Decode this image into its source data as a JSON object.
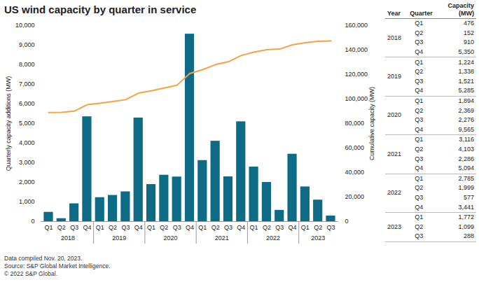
{
  "chart_data": {
    "type": "bar",
    "title": "US wind capacity by quarter in service",
    "categories": [
      "Q1",
      "Q2",
      "Q3",
      "Q4",
      "Q1",
      "Q2",
      "Q3",
      "Q4",
      "Q1",
      "Q2",
      "Q3",
      "Q4",
      "Q1",
      "Q2",
      "Q3",
      "Q4",
      "Q1",
      "Q2",
      "Q3",
      "Q4",
      "Q1",
      "Q2",
      "Q3"
    ],
    "years": [
      "2018",
      "2018",
      "2018",
      "2018",
      "2019",
      "2019",
      "2019",
      "2019",
      "2020",
      "2020",
      "2020",
      "2020",
      "2021",
      "2021",
      "2021",
      "2021",
      "2022",
      "2022",
      "2022",
      "2022",
      "2023",
      "2023",
      "2023"
    ],
    "series": [
      {
        "type": "bar",
        "color": "#0d6b86",
        "values": [
          476,
          152,
          910,
          5350,
          1224,
          1338,
          1521,
          5285,
          1894,
          2369,
          2276,
          9565,
          3116,
          4103,
          2286,
          5094,
          2785,
          1999,
          577,
          3441,
          1772,
          1099,
          288
        ]
      },
      {
        "type": "line",
        "axis": "y2",
        "color": "#f4a340",
        "values": [
          89000,
          89200,
          90100,
          95400,
          96600,
          98000,
          99500,
          104800,
          106700,
          109000,
          111300,
          120900,
          124000,
          128100,
          130400,
          135500,
          138300,
          140300,
          140800,
          144300,
          146000,
          147200,
          147400
        ]
      }
    ],
    "ylabel": "Quarterly capacity additions (MW)",
    "y2label": "Cumulative capacity (MW)",
    "ylim": [
      0,
      10000
    ],
    "yticks": [
      0,
      {
        "value": 1000,
        "label": "1,000"
      },
      {
        "value": 2000,
        "label": "2,000"
      },
      {
        "value": 3000,
        "label": "3,000"
      },
      {
        "value": 4000,
        "label": "4,000"
      },
      {
        "value": 5000,
        "label": "5,000"
      },
      {
        "value": 6000,
        "label": "6,000"
      },
      {
        "value": 7000,
        "label": "7,000"
      },
      {
        "value": 8000,
        "label": "8,000"
      },
      {
        "value": 9000,
        "label": "9,000"
      },
      {
        "value": 10000,
        "label": "10,000"
      }
    ],
    "y2lim": [
      0,
      160000
    ],
    "y2ticks": [
      0,
      {
        "value": 20000,
        "label": "20,000"
      },
      {
        "value": 40000,
        "label": "40,000"
      },
      {
        "value": 60000,
        "label": "60,000"
      },
      {
        "value": 80000,
        "label": "80,000"
      },
      {
        "value": 100000,
        "label": "100,000"
      },
      {
        "value": 120000,
        "label": "120,000"
      },
      {
        "value": 140000,
        "label": "140,000"
      },
      {
        "value": 160000,
        "label": "160,000"
      }
    ],
    "grid": false,
    "notes": [
      "Data compiled Nov. 20, 2023.",
      "Source: S&P Global Market Intelligence.",
      "© 2022 S&P Global."
    ]
  },
  "table": {
    "columns": [
      "Year",
      "Quarter",
      "Capacity (MW)"
    ]
  }
}
